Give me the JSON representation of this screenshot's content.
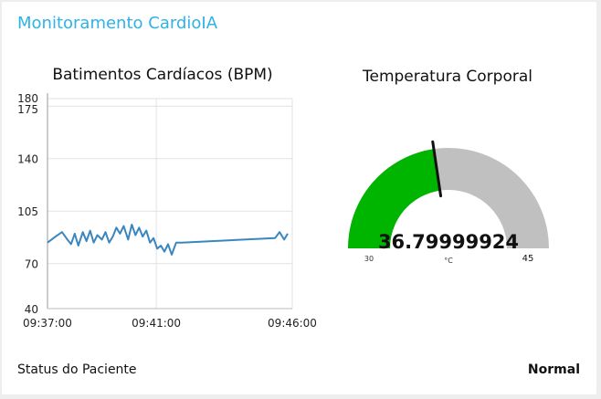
{
  "dashboard": {
    "title": "Monitoramento CardioIA"
  },
  "heart_rate": {
    "title": "Batimentos Cardíacos (BPM)"
  },
  "temperature": {
    "title": "Temperatura Corporal",
    "value_label": "36.79999924",
    "unit": "°C",
    "min_label": "30",
    "max_label": "45"
  },
  "status": {
    "label": "Status do Paciente",
    "value": "Normal"
  },
  "colors": {
    "title_accent": "#2eb2e8",
    "line": "#3a86bf",
    "gauge_fill": "#00b500",
    "gauge_track": "#c0c0c0",
    "needle": "#111111"
  },
  "chart_data": [
    {
      "type": "line",
      "title": "Batimentos Cardíacos (BPM)",
      "ylim": [
        40,
        180
      ],
      "y_ticks": [
        40,
        70,
        105,
        140,
        175,
        180
      ],
      "xlim": [
        "09:37:00",
        "09:46:00"
      ],
      "x_ticks": [
        "09:37:00",
        "09:41:00",
        "09:46:00"
      ],
      "grid": true,
      "series": [
        {
          "x": [
            "09:37:00",
            "09:37:18",
            "09:37:32",
            "09:37:44",
            "09:37:52",
            "09:38:00",
            "09:38:08",
            "09:38:18",
            "09:38:26",
            "09:38:34",
            "09:38:42",
            "09:38:50",
            "09:39:00",
            "09:39:08",
            "09:39:16",
            "09:39:24",
            "09:39:32",
            "09:39:40",
            "09:39:48",
            "09:39:58",
            "09:40:06",
            "09:40:14",
            "09:40:22",
            "09:40:30",
            "09:40:38",
            "09:40:46",
            "09:40:54",
            "09:41:02",
            "09:41:10",
            "09:41:18",
            "09:41:26",
            "09:41:34",
            "09:41:44",
            "09:41:56",
            "09:45:22",
            "09:45:32",
            "09:45:42",
            "09:45:50"
          ],
          "values": [
            84,
            88,
            91,
            86,
            83,
            90,
            82,
            91,
            85,
            92,
            84,
            89,
            86,
            91,
            84,
            88,
            94,
            90,
            95,
            86,
            96,
            89,
            94,
            88,
            92,
            84,
            87,
            80,
            82,
            78,
            83,
            76,
            84,
            84,
            87,
            91,
            86,
            90
          ]
        }
      ]
    },
    {
      "type": "gauge",
      "title": "Temperatura Corporal",
      "value": 36.79999924,
      "min": 30,
      "max": 45,
      "unit": "°C"
    }
  ]
}
